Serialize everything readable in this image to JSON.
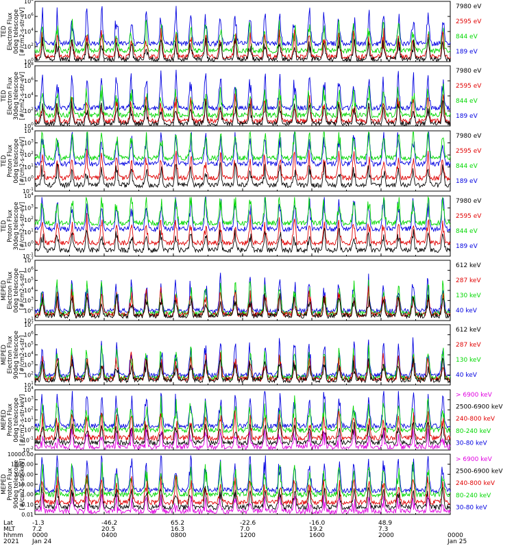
{
  "legends": {
    "ted": [
      {
        "label": "7980 eV",
        "color": "#000000"
      },
      {
        "label": "2595 eV",
        "color": "#e00000"
      },
      {
        "label": "844 eV",
        "color": "#00d800"
      },
      {
        "label": "189 eV",
        "color": "#0000e0"
      }
    ],
    "meped_e": [
      {
        "label": "612 keV",
        "color": "#000000"
      },
      {
        "label": "287 keV",
        "color": "#e00000"
      },
      {
        "label": "130 keV",
        "color": "#00d800"
      },
      {
        "label": "40 keV",
        "color": "#0000e0"
      }
    ],
    "meped_p": [
      {
        "label": "> 6900 keV",
        "color": "#e000e0"
      },
      {
        "label": "2500-6900 keV",
        "color": "#000000"
      },
      {
        "label": "240-800 keV",
        "color": "#e00000"
      },
      {
        "label": "80-240 keV",
        "color": "#00d800"
      },
      {
        "label": "30-80 keV",
        "color": "#0000e0"
      }
    ]
  },
  "chart_data": [
    {
      "type": "line",
      "ylabel": [
        "TED",
        "Electron Flux",
        "0deg telescope",
        "[#/cm2-s-str-eV]"
      ],
      "y_ticks": [
        "10^0",
        "10^2",
        "10^4",
        "10^6",
        "10^8"
      ],
      "legend": "ted",
      "ylim_log": [
        0,
        8
      ]
    },
    {
      "type": "line",
      "ylabel": [
        "TED",
        "Electron Flux",
        "30deg telescope",
        "[#/cm2-s-str-eV]"
      ],
      "y_ticks": [
        "10^0",
        "10^2",
        "10^4",
        "10^6",
        "10^8"
      ],
      "legend": "ted",
      "ylim_log": [
        0,
        8
      ]
    },
    {
      "type": "line",
      "ylabel": [
        "TED",
        "Proton Flux",
        "0deg telescope",
        "[#/cm2-s-str-eV]"
      ],
      "y_ticks": [
        "10^-1",
        "10^0",
        "10^1",
        "10^2",
        "10^3",
        "10^4"
      ],
      "legend": "ted",
      "ylim_log": [
        -1,
        4.3
      ]
    },
    {
      "type": "line",
      "ylabel": [
        "TED",
        "Proton Flux",
        "30deg telescope",
        "[#/cm2-s-str-eV]"
      ],
      "y_ticks": [
        "10^-1",
        "10^0",
        "10^1",
        "10^2",
        "10^3",
        "10^4"
      ],
      "legend": "ted",
      "ylim_log": [
        -1,
        4.3
      ]
    },
    {
      "type": "line",
      "ylabel": [
        "MEPED",
        "Electron Flux",
        "0deg telescope",
        "[#/cm2-s-str]"
      ],
      "y_ticks": [
        "10^1",
        "10^2",
        "10^3",
        "10^4",
        "10^5",
        "10^6",
        "10^7"
      ],
      "legend": "meped_e",
      "ylim_log": [
        1,
        7
      ]
    },
    {
      "type": "line",
      "ylabel": [
        "MEPED",
        "Electron Flux",
        "90deg telescope",
        "[#/cm2-s-str]"
      ],
      "y_ticks": [
        "10^1",
        "10^2",
        "10^3",
        "10^4",
        "10^5",
        "10^6",
        "10^7"
      ],
      "legend": "meped_e",
      "ylim_log": [
        1,
        7
      ]
    },
    {
      "type": "line",
      "ylabel": [
        "MEPED",
        "Proton Flux",
        "0deg telescope",
        "[#/cm2-s-str-keV]"
      ],
      "y_ticks": [
        "10^-2",
        "10^-1",
        "10^0",
        "10^1",
        "10^2",
        "10^3",
        "10^4"
      ],
      "legend": "meped_p",
      "ylim_log": [
        -2,
        4
      ]
    },
    {
      "type": "line",
      "ylabel": [
        "MEPED",
        "Proton Flux",
        "90deg telescope",
        "[#/cm2-s-str-keV]"
      ],
      "y_ticks": [
        "0.01",
        "0.10",
        "1.00",
        "10.00",
        "100.00",
        "1000.00",
        "10000.00"
      ],
      "legend": "meped_p",
      "ylim_log": [
        -2,
        4
      ]
    }
  ],
  "xaxis": {
    "row_labels": [
      "Lat",
      "MLT",
      "hhmm",
      "2021"
    ],
    "ticks": [
      {
        "lat": "-1.3",
        "mlt": "7.2",
        "hhmm": "0000",
        "date": "Jan 24"
      },
      {
        "lat": "-46.2",
        "mlt": "20.5",
        "hhmm": "0400",
        "date": ""
      },
      {
        "lat": "65.2",
        "mlt": "16.3",
        "hhmm": "0800",
        "date": ""
      },
      {
        "lat": "-22.6",
        "mlt": "7.0",
        "hhmm": "1200",
        "date": ""
      },
      {
        "lat": "-16.0",
        "mlt": "19.2",
        "hhmm": "1600",
        "date": ""
      },
      {
        "lat": "48.9",
        "mlt": "7.3",
        "hhmm": "2000",
        "date": ""
      },
      {
        "lat": "",
        "mlt": "",
        "hhmm": "0000",
        "date": "Jan 25"
      }
    ]
  }
}
